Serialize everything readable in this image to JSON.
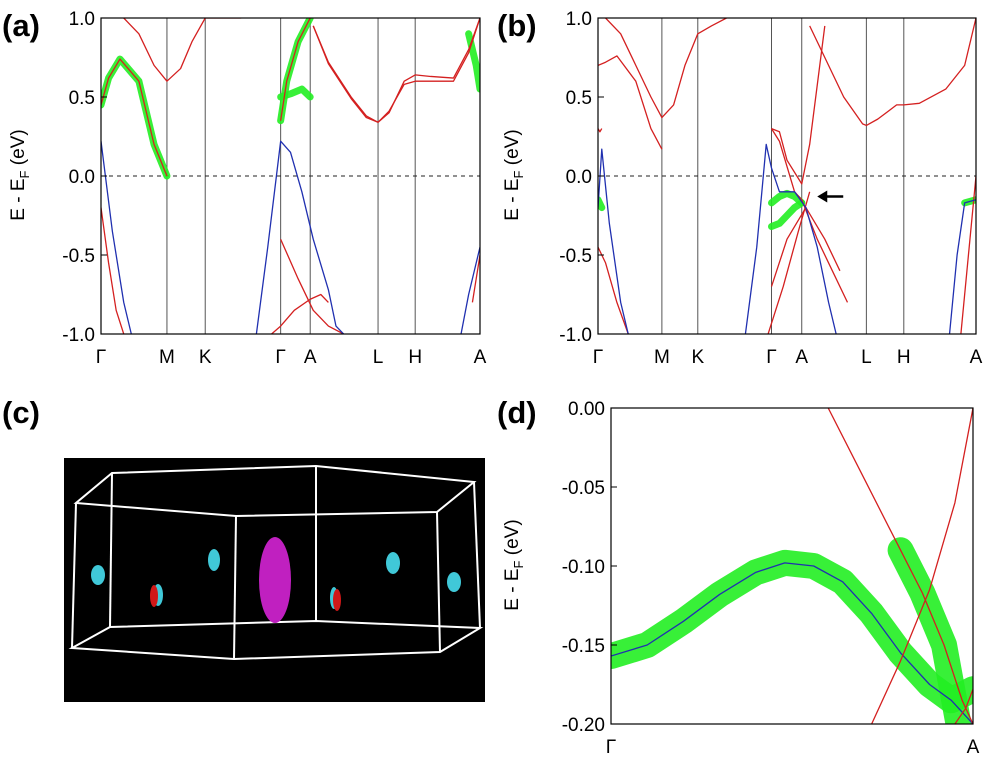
{
  "figure": {
    "panels": {
      "a": {
        "label": "(a)"
      },
      "b": {
        "label": "(b)"
      },
      "c": {
        "label": "(c)"
      },
      "d": {
        "label": "(d)"
      }
    },
    "ylabel": {
      "main": "E - E",
      "sub": "F",
      "unit": " (eV)"
    }
  },
  "colors": {
    "band": "#d42020",
    "blue_band": "#2030b0",
    "projection": "#22ee22",
    "arrow": "#000000",
    "bz_background": "#000000",
    "bz_edges": "#ffffff",
    "pocket_cyan": "#40c8d8",
    "pocket_red": "#d01818",
    "pocket_magenta": "#c020c0"
  },
  "chart_data": [
    {
      "panel": "a",
      "type": "line",
      "title": "",
      "xlabel": "",
      "ylabel": "E - EF (eV)",
      "ylim": [
        -1.0,
        1.0
      ],
      "yticks": [
        -1.0,
        -0.5,
        0.0,
        0.5,
        1.0
      ],
      "ytick_labels": [
        "-1.0",
        "-0.5",
        "0.0",
        "0.5",
        "1.0"
      ],
      "kpath": [
        "Γ",
        "M",
        "K",
        "Γ",
        "A",
        "L",
        "H",
        "A"
      ],
      "kpos": [
        0,
        0.174,
        0.275,
        0.474,
        0.552,
        0.731,
        0.829,
        1.0
      ],
      "fermi_line": 0.0,
      "series": [
        {
          "name": "red-1",
          "color": "red",
          "x": [
            0,
            0.02,
            0.05,
            0.1,
            0.14,
            0.174
          ],
          "y": [
            0.45,
            0.62,
            0.74,
            0.6,
            0.2,
            0.0
          ]
        },
        {
          "name": "red-2",
          "color": "red",
          "x": [
            0.06,
            0.1,
            0.14,
            0.174,
            0.21,
            0.24,
            0.275,
            0.31,
            0.37
          ],
          "y": [
            1.0,
            0.9,
            0.7,
            0.6,
            0.68,
            0.85,
            1.0,
            1.0,
            1.0
          ]
        },
        {
          "name": "red-3",
          "color": "red",
          "x": [
            0.474,
            0.49,
            0.52,
            0.552
          ],
          "y": [
            0.35,
            0.6,
            0.85,
            1.0
          ]
        },
        {
          "name": "red-4",
          "color": "red",
          "x": [
            0.56,
            0.6,
            0.66,
            0.7,
            0.731,
            0.76,
            0.8,
            0.829,
            0.87,
            0.93,
            0.97,
            1.0
          ],
          "y": [
            0.95,
            0.72,
            0.5,
            0.38,
            0.34,
            0.4,
            0.6,
            0.64,
            0.63,
            0.62,
            0.8,
            1.0
          ]
        },
        {
          "name": "red-5",
          "color": "red",
          "x": [
            0.56,
            0.6,
            0.66,
            0.7,
            0.731,
            0.76,
            0.8,
            0.829,
            0.87,
            0.93,
            0.97,
            1.0
          ],
          "y": [
            0.95,
            0.71,
            0.49,
            0.37,
            0.34,
            0.41,
            0.58,
            0.6,
            0.6,
            0.6,
            0.78,
            1.0
          ]
        },
        {
          "name": "red-6",
          "color": "red",
          "x": [
            0,
            0.02,
            0.04,
            0.06
          ],
          "y": [
            -0.2,
            -0.55,
            -0.85,
            -1.0
          ]
        },
        {
          "name": "red-7",
          "color": "red",
          "x": [
            0.474,
            0.52,
            0.56,
            0.6,
            0.64
          ],
          "y": [
            -0.4,
            -0.65,
            -0.85,
            -0.95,
            -1.0
          ]
        },
        {
          "name": "red-8",
          "color": "red",
          "x": [
            0.45,
            0.474,
            0.51,
            0.552,
            0.58,
            0.6
          ],
          "y": [
            -1.0,
            -0.95,
            -0.85,
            -0.78,
            -0.75,
            -0.8
          ]
        },
        {
          "name": "red-9",
          "color": "red",
          "x": [
            0.98,
            0.99,
            1.0
          ],
          "y": [
            -0.8,
            -0.65,
            -0.5
          ]
        },
        {
          "name": "blue-1",
          "color": "blue",
          "x": [
            0,
            0.03,
            0.06,
            0.08
          ],
          "y": [
            0.22,
            -0.35,
            -0.8,
            -1.0
          ]
        },
        {
          "name": "blue-2",
          "color": "blue",
          "x": [
            0.41,
            0.44,
            0.474,
            0.5,
            0.53,
            0.56,
            0.6,
            0.62,
            0.64
          ],
          "y": [
            -1.0,
            -0.45,
            0.22,
            0.15,
            -0.1,
            -0.4,
            -0.72,
            -0.95,
            -1.0
          ]
        },
        {
          "name": "blue-3",
          "color": "blue",
          "x": [
            0.95,
            0.97,
            1.0
          ],
          "y": [
            -1.0,
            -0.75,
            -0.45
          ]
        }
      ],
      "projection_bands": [
        {
          "x": [
            0,
            0.02,
            0.05,
            0.1,
            0.14,
            0.174
          ],
          "y": [
            0.45,
            0.62,
            0.74,
            0.6,
            0.2,
            0.0
          ]
        },
        {
          "x": [
            0.474,
            0.49,
            0.52,
            0.552
          ],
          "y": [
            0.35,
            0.6,
            0.85,
            1.0
          ]
        },
        {
          "x": [
            0.474,
            0.5,
            0.53,
            0.552
          ],
          "y": [
            0.5,
            0.52,
            0.55,
            0.5
          ]
        },
        {
          "x": [
            0.97,
            0.99,
            1.0
          ],
          "y": [
            0.9,
            0.7,
            0.55
          ]
        }
      ]
    },
    {
      "panel": "b",
      "type": "line",
      "title": "",
      "xlabel": "",
      "ylabel": "E - EF (eV)",
      "ylim": [
        -1.0,
        1.0
      ],
      "yticks": [
        -1.0,
        -0.5,
        0.0,
        0.5,
        1.0
      ],
      "ytick_labels": [
        "-1.0",
        "-0.5",
        "0.0",
        "0.5",
        "1.0"
      ],
      "kpath": [
        "Γ",
        "M",
        "K",
        "Γ",
        "A",
        "L",
        "H",
        "A"
      ],
      "kpos": [
        0,
        0.169,
        0.264,
        0.459,
        0.539,
        0.71,
        0.809,
        1.0
      ],
      "fermi_line": 0.0,
      "annotation": {
        "type": "arrow",
        "x": 0.58,
        "y": -0.13
      },
      "series": [
        {
          "name": "red-1",
          "color": "red",
          "x": [
            0,
            0.02,
            0.05,
            0.1,
            0.14,
            0.169
          ],
          "y": [
            0.7,
            0.72,
            0.76,
            0.6,
            0.3,
            0.17
          ]
        },
        {
          "name": "red-2",
          "color": "red",
          "x": [
            0.02,
            0.06,
            0.1,
            0.14,
            0.169,
            0.2,
            0.23,
            0.264,
            0.3,
            0.34
          ],
          "y": [
            1.0,
            0.9,
            0.7,
            0.5,
            0.37,
            0.45,
            0.7,
            0.9,
            0.95,
            1.0
          ]
        },
        {
          "name": "red-3",
          "color": "red",
          "x": [
            0,
            0.005,
            0.01
          ],
          "y": [
            0.3,
            0.28,
            0.3
          ]
        },
        {
          "name": "red-4",
          "color": "red",
          "x": [
            0.459,
            0.48,
            0.5,
            0.539,
            0.56,
            0.6
          ],
          "y": [
            0.3,
            0.28,
            0.1,
            -0.05,
            0.2,
            0.95
          ]
        },
        {
          "name": "red-5",
          "color": "red",
          "x": [
            0.459,
            0.48,
            0.52,
            0.539,
            0.58,
            0.62,
            0.66
          ],
          "y": [
            0.3,
            0.22,
            -0.1,
            -0.15,
            -0.4,
            -0.6,
            -0.8
          ]
        },
        {
          "name": "red-6",
          "color": "red",
          "x": [
            0.56,
            0.6,
            0.65,
            0.7,
            0.71,
            0.74,
            0.79,
            0.809,
            0.85,
            0.92,
            0.97,
            1.0
          ],
          "y": [
            0.95,
            0.75,
            0.5,
            0.33,
            0.32,
            0.36,
            0.45,
            0.45,
            0.46,
            0.55,
            0.7,
            1.0
          ]
        },
        {
          "name": "red-7",
          "color": "red",
          "x": [
            0,
            0.02,
            0.05,
            0.08
          ],
          "y": [
            -0.45,
            -0.55,
            -0.8,
            -1.0
          ]
        },
        {
          "name": "red-8",
          "color": "red",
          "x": [
            0.459,
            0.5,
            0.55,
            0.6,
            0.64
          ],
          "y": [
            -0.7,
            -0.4,
            -0.2,
            -0.4,
            -0.6
          ]
        },
        {
          "name": "red-9",
          "color": "red",
          "x": [
            0.45,
            0.49,
            0.53,
            0.56
          ],
          "y": [
            -1.0,
            -0.7,
            -0.35,
            -0.1
          ]
        },
        {
          "name": "red-10",
          "color": "red",
          "x": [
            0.96,
            0.98,
            1.0
          ],
          "y": [
            -1.0,
            -0.5,
            0.0
          ]
        },
        {
          "name": "blue-1",
          "color": "blue",
          "x": [
            0,
            0.01,
            0.03,
            0.06,
            0.08
          ],
          "y": [
            -0.2,
            0.17,
            -0.3,
            -0.8,
            -1.0
          ]
        },
        {
          "name": "blue-2",
          "color": "blue",
          "x": [
            0.39,
            0.42,
            0.445,
            0.459,
            0.48,
            0.52,
            0.55,
            0.58,
            0.61,
            0.63
          ],
          "y": [
            -1.0,
            -0.45,
            0.2,
            0.05,
            -0.1,
            -0.1,
            -0.2,
            -0.45,
            -0.8,
            -1.0
          ]
        },
        {
          "name": "blue-3",
          "color": "blue",
          "x": [
            0.93,
            0.95,
            0.97,
            1.0
          ],
          "y": [
            -1.0,
            -0.5,
            -0.17,
            -0.15
          ]
        }
      ],
      "projection_bands": [
        {
          "x": [
            0,
            0.01
          ],
          "y": [
            -0.15,
            -0.2
          ]
        },
        {
          "x": [
            0.459,
            0.48,
            0.5,
            0.52,
            0.539
          ],
          "y": [
            -0.17,
            -0.13,
            -0.11,
            -0.13,
            -0.17
          ]
        },
        {
          "x": [
            0.459,
            0.48,
            0.5,
            0.52,
            0.539
          ],
          "y": [
            -0.32,
            -0.3,
            -0.25,
            -0.2,
            -0.17
          ]
        },
        {
          "x": [
            0.97,
            1.0
          ],
          "y": [
            -0.17,
            -0.15
          ]
        }
      ]
    },
    {
      "panel": "d",
      "type": "line",
      "title": "",
      "xlabel": "",
      "ylabel": "E - EF (eV)",
      "ylim": [
        -0.2,
        0.0
      ],
      "yticks": [
        -0.2,
        -0.15,
        -0.1,
        -0.05,
        0.0
      ],
      "ytick_labels": [
        "-0.20",
        "-0.15",
        "-0.10",
        "-0.05",
        "0.00"
      ],
      "kpath": [
        "Γ",
        "A"
      ],
      "kpos": [
        0,
        1.0
      ],
      "series": [
        {
          "name": "blue-band",
          "color": "blue",
          "x": [
            0,
            0.1,
            0.2,
            0.3,
            0.4,
            0.48,
            0.56,
            0.64,
            0.72,
            0.8,
            0.88,
            0.94,
            1.0
          ],
          "y": [
            -0.157,
            -0.15,
            -0.135,
            -0.118,
            -0.104,
            -0.098,
            -0.1,
            -0.11,
            -0.13,
            -0.155,
            -0.175,
            -0.185,
            -0.2
          ]
        },
        {
          "name": "red-steep",
          "color": "red",
          "x": [
            0.6,
            0.7,
            0.8,
            0.86,
            0.92,
            0.97,
            1.0
          ],
          "y": [
            0.0,
            -0.045,
            -0.09,
            -0.117,
            -0.15,
            -0.185,
            -0.2
          ]
        },
        {
          "name": "red-cross",
          "color": "red",
          "x": [
            0.72,
            0.8,
            0.88,
            0.95,
            1.0
          ],
          "y": [
            -0.2,
            -0.16,
            -0.115,
            -0.06,
            0.0
          ]
        },
        {
          "name": "red-return",
          "color": "red",
          "x": [
            0.95,
            0.98,
            1.0
          ],
          "y": [
            -0.2,
            -0.19,
            -0.178
          ]
        }
      ],
      "projection_bands": [
        {
          "x": [
            0,
            0.1,
            0.2,
            0.3,
            0.4,
            0.48,
            0.56,
            0.64,
            0.72,
            0.8,
            0.88,
            0.94,
            1.0
          ],
          "y": [
            -0.157,
            -0.15,
            -0.135,
            -0.118,
            -0.104,
            -0.098,
            -0.1,
            -0.11,
            -0.13,
            -0.155,
            -0.175,
            -0.185,
            -0.178
          ]
        },
        {
          "x": [
            0.8,
            0.86,
            0.92,
            0.96
          ],
          "y": [
            -0.09,
            -0.117,
            -0.15,
            -0.2
          ]
        }
      ]
    }
  ]
}
